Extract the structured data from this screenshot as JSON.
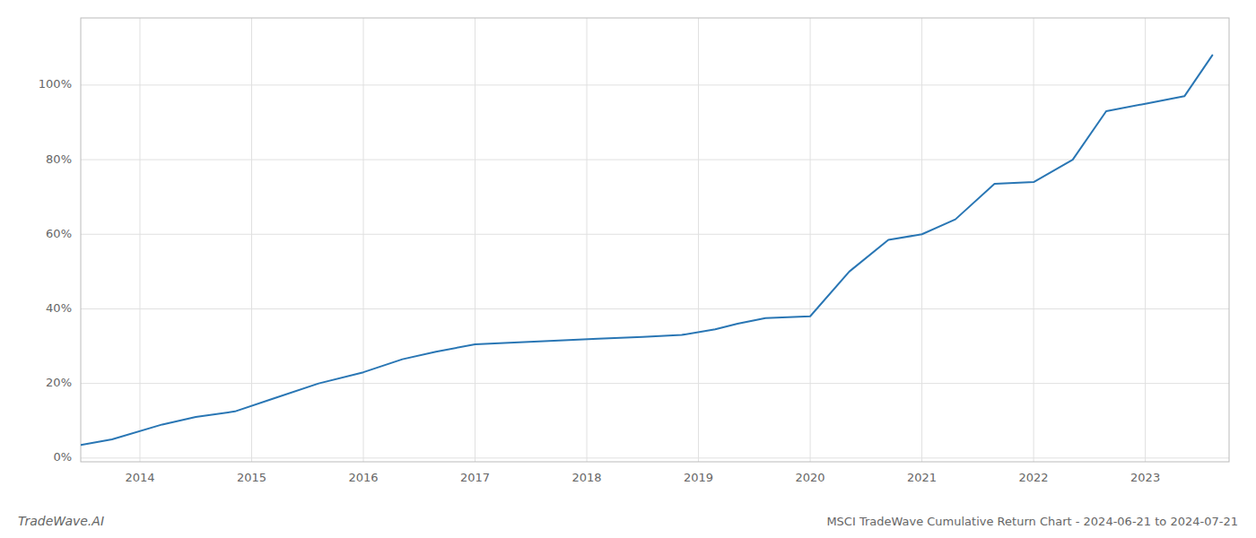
{
  "chart_data": {
    "type": "line",
    "title": "MSCI TradeWave Cumulative Return Chart - 2024-06-21 to 2024-07-21",
    "annotations": [
      "TradeWave.AI"
    ],
    "x": [
      2013.47,
      2013.75,
      2014.2,
      2014.5,
      2014.85,
      2015.2,
      2015.6,
      2016.0,
      2016.35,
      2016.65,
      2017.0,
      2017.35,
      2017.75,
      2018.1,
      2018.5,
      2018.85,
      2019.15,
      2019.35,
      2019.6,
      2020.0,
      2020.35,
      2020.7,
      2021.0,
      2021.3,
      2021.65,
      2022.0,
      2022.35,
      2022.65,
      2023.0,
      2023.35,
      2023.6
    ],
    "values": [
      0.035,
      0.05,
      0.09,
      0.11,
      0.125,
      0.16,
      0.2,
      0.23,
      0.265,
      0.285,
      0.305,
      0.31,
      0.315,
      0.32,
      0.325,
      0.33,
      0.345,
      0.36,
      0.375,
      0.38,
      0.5,
      0.585,
      0.6,
      0.64,
      0.735,
      0.74,
      0.8,
      0.93,
      0.95,
      0.97,
      1.08
    ],
    "color": "#2976b4",
    "xlim": [
      2013.47,
      2023.75
    ],
    "xticks": [
      2014,
      2015,
      2016,
      2017,
      2018,
      2019,
      2020,
      2021,
      2022,
      2023
    ],
    "ylim": [
      -0.01,
      1.18
    ],
    "yticks": [
      {
        "value": 0.0,
        "label": "0%"
      },
      {
        "value": 0.2,
        "label": "20%"
      },
      {
        "value": 0.4,
        "label": "40%"
      },
      {
        "value": 0.6,
        "label": "60%"
      },
      {
        "value": 0.8,
        "label": "80%"
      },
      {
        "value": 1.0,
        "label": "100%"
      }
    ],
    "grid": true
  }
}
